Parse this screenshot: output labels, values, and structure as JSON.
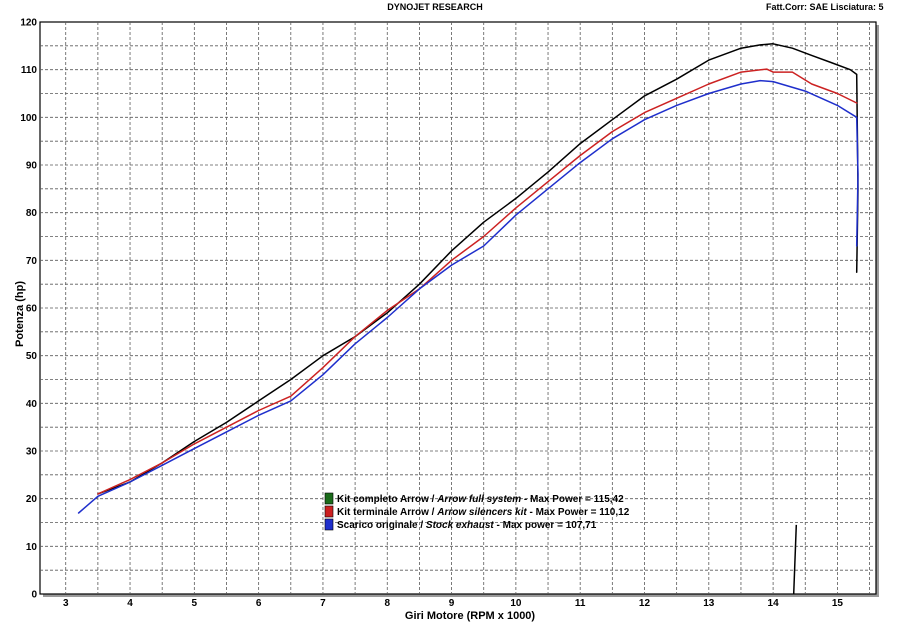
{
  "header": {
    "title": "DYNOJET RESEARCH",
    "correction": "Fatt.Corr: SAE  Lisciatura: 5"
  },
  "chart_data": {
    "type": "line",
    "xlabel": "Giri Motore (RPM x 1000)",
    "ylabel": "Potenza (hp)",
    "xlim": [
      2.6,
      15.6
    ],
    "ylim": [
      0,
      120
    ],
    "xticks": [
      "3",
      "4",
      "5",
      "6",
      "7",
      "8",
      "9",
      "10",
      "11",
      "12",
      "13",
      "14",
      "15"
    ],
    "yticks": [
      "0",
      "10",
      "20",
      "30",
      "40",
      "50",
      "60",
      "70",
      "80",
      "90",
      "100",
      "110",
      "120"
    ],
    "grid": true,
    "legend_position": "bottom-center",
    "series": [
      {
        "name": "Kit completo Arrow / Arrow full system - Max Power = 115,42",
        "legend_parts": [
          "Kit completo Arrow / ",
          "Arrow full system",
          " - Max Power = 115,42"
        ],
        "swatch_color": "#1a6b1a",
        "color": "#000000",
        "x": [
          3.5,
          4.0,
          4.5,
          5.0,
          5.5,
          6.0,
          6.5,
          7.0,
          7.5,
          8.0,
          8.5,
          9.0,
          9.5,
          10.0,
          10.5,
          11.0,
          11.5,
          12.0,
          12.5,
          13.0,
          13.5,
          13.8,
          14.0,
          14.3,
          14.6,
          14.9,
          15.2,
          15.3,
          15.32,
          15.3
        ],
        "y": [
          21,
          23.5,
          27.5,
          32,
          36,
          40.5,
          45,
          50,
          54,
          59,
          65,
          72,
          78,
          83,
          88.5,
          94.5,
          99.5,
          104.5,
          108,
          112,
          114.5,
          115.2,
          115.42,
          114.5,
          113,
          111.5,
          110,
          109,
          85,
          67.5
        ]
      },
      {
        "name": "Kit terminale Arrow / Arrow silencers kit - Max Power = 110,12",
        "legend_parts": [
          "Kit terminale Arrow / ",
          "Arrow silencers kit",
          " - Max Power = 110,12"
        ],
        "swatch_color": "#cc1f1f",
        "color": "#cc2222",
        "x": [
          3.5,
          4.0,
          4.5,
          5.0,
          5.5,
          6.0,
          6.5,
          7.0,
          7.5,
          8.0,
          8.5,
          9.0,
          9.5,
          10.0,
          10.5,
          11.0,
          11.5,
          12.0,
          12.5,
          13.0,
          13.5,
          13.9,
          14.0,
          14.3,
          14.6,
          15.0,
          15.3
        ],
        "y": [
          21,
          24,
          27.5,
          31.5,
          35,
          38.5,
          41.5,
          47.5,
          54,
          59.5,
          64,
          70,
          75,
          81,
          86.5,
          92,
          97,
          101,
          104,
          107,
          109.5,
          110.12,
          109.5,
          109.5,
          107,
          105,
          103
        ]
      },
      {
        "name": "Scarico originale / Stock exhaust - Max power = 107,71",
        "legend_parts": [
          "Scarico originale / ",
          "Stock exhaust",
          " - Max power = 107,71"
        ],
        "swatch_color": "#1f2fcc",
        "color": "#1f2fcc",
        "x": [
          3.2,
          3.5,
          4.0,
          4.5,
          5.0,
          5.5,
          6.0,
          6.5,
          7.0,
          7.5,
          8.0,
          8.5,
          9.0,
          9.5,
          10.0,
          10.5,
          11.0,
          11.5,
          12.0,
          12.5,
          13.0,
          13.5,
          13.8,
          14.0,
          14.5,
          15.0,
          15.3,
          15.32,
          15.3
        ],
        "y": [
          17,
          20.5,
          23.5,
          27,
          30.5,
          34,
          37.5,
          40.5,
          46,
          52.5,
          58,
          64,
          69,
          73,
          79.5,
          85,
          90.5,
          95.5,
          99.5,
          102.5,
          105,
          107,
          107.71,
          107.5,
          105.5,
          102.5,
          100,
          88,
          73
        ]
      }
    ],
    "annotation": {
      "color": "#000000",
      "x": [
        14.32,
        14.36
      ],
      "y": [
        0,
        14.5
      ]
    }
  }
}
